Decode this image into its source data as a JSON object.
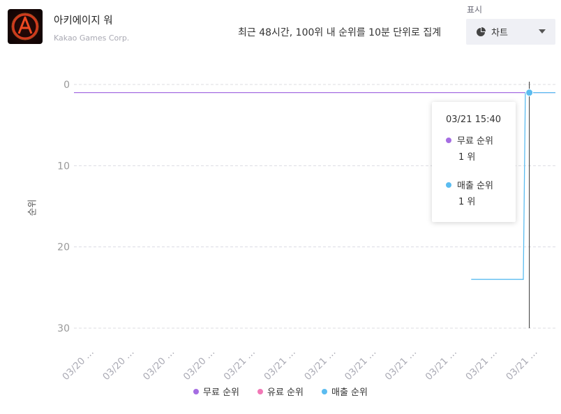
{
  "app": {
    "title": "아키에이지 워",
    "developer": "Kakao Games Corp."
  },
  "header": {
    "subtitle": "최근 48시간, 100위 내 순위를 10분 단위로 집계",
    "display_label": "표시",
    "display_value": "차트"
  },
  "colors": {
    "free": "#a56de2",
    "paid": "#f178b6",
    "revenue": "#5bbcf0"
  },
  "chart_data": {
    "type": "line",
    "title": "",
    "ylabel": "순위",
    "xlabel": "",
    "yreversed": true,
    "ylim": [
      0,
      30
    ],
    "yticks": [
      0,
      10,
      20,
      30
    ],
    "x_ticks": [
      "03/20 …",
      "03/20 …",
      "03/20 …",
      "03/20 …",
      "03/21 …",
      "03/21 …",
      "03/21 …",
      "03/21 …",
      "03/21 …",
      "03/21 …",
      "03/21 …",
      "03/21 …"
    ],
    "x_range": [
      0,
      12
    ],
    "legend": [
      "무료 순위",
      "유료 순위",
      "매출 순위"
    ],
    "series": [
      {
        "name": "무료 순위",
        "color": "#a56de2",
        "points": [
          [
            0,
            1
          ],
          [
            12,
            1
          ]
        ]
      },
      {
        "name": "유료 순위",
        "color": "#f178b6",
        "points": []
      },
      {
        "name": "매출 순위",
        "color": "#5bbcf0",
        "points": [
          [
            9.9,
            24
          ],
          [
            11.2,
            24
          ],
          [
            11.25,
            1
          ],
          [
            12,
            1
          ]
        ]
      }
    ],
    "hover": {
      "time": "03/21 15:40",
      "x": 11.35,
      "items": [
        {
          "name": "무료 순위",
          "value": "1 위",
          "color": "#a56de2"
        },
        {
          "name": "매출 순위",
          "value": "1 위",
          "color": "#5bbcf0"
        }
      ]
    }
  }
}
